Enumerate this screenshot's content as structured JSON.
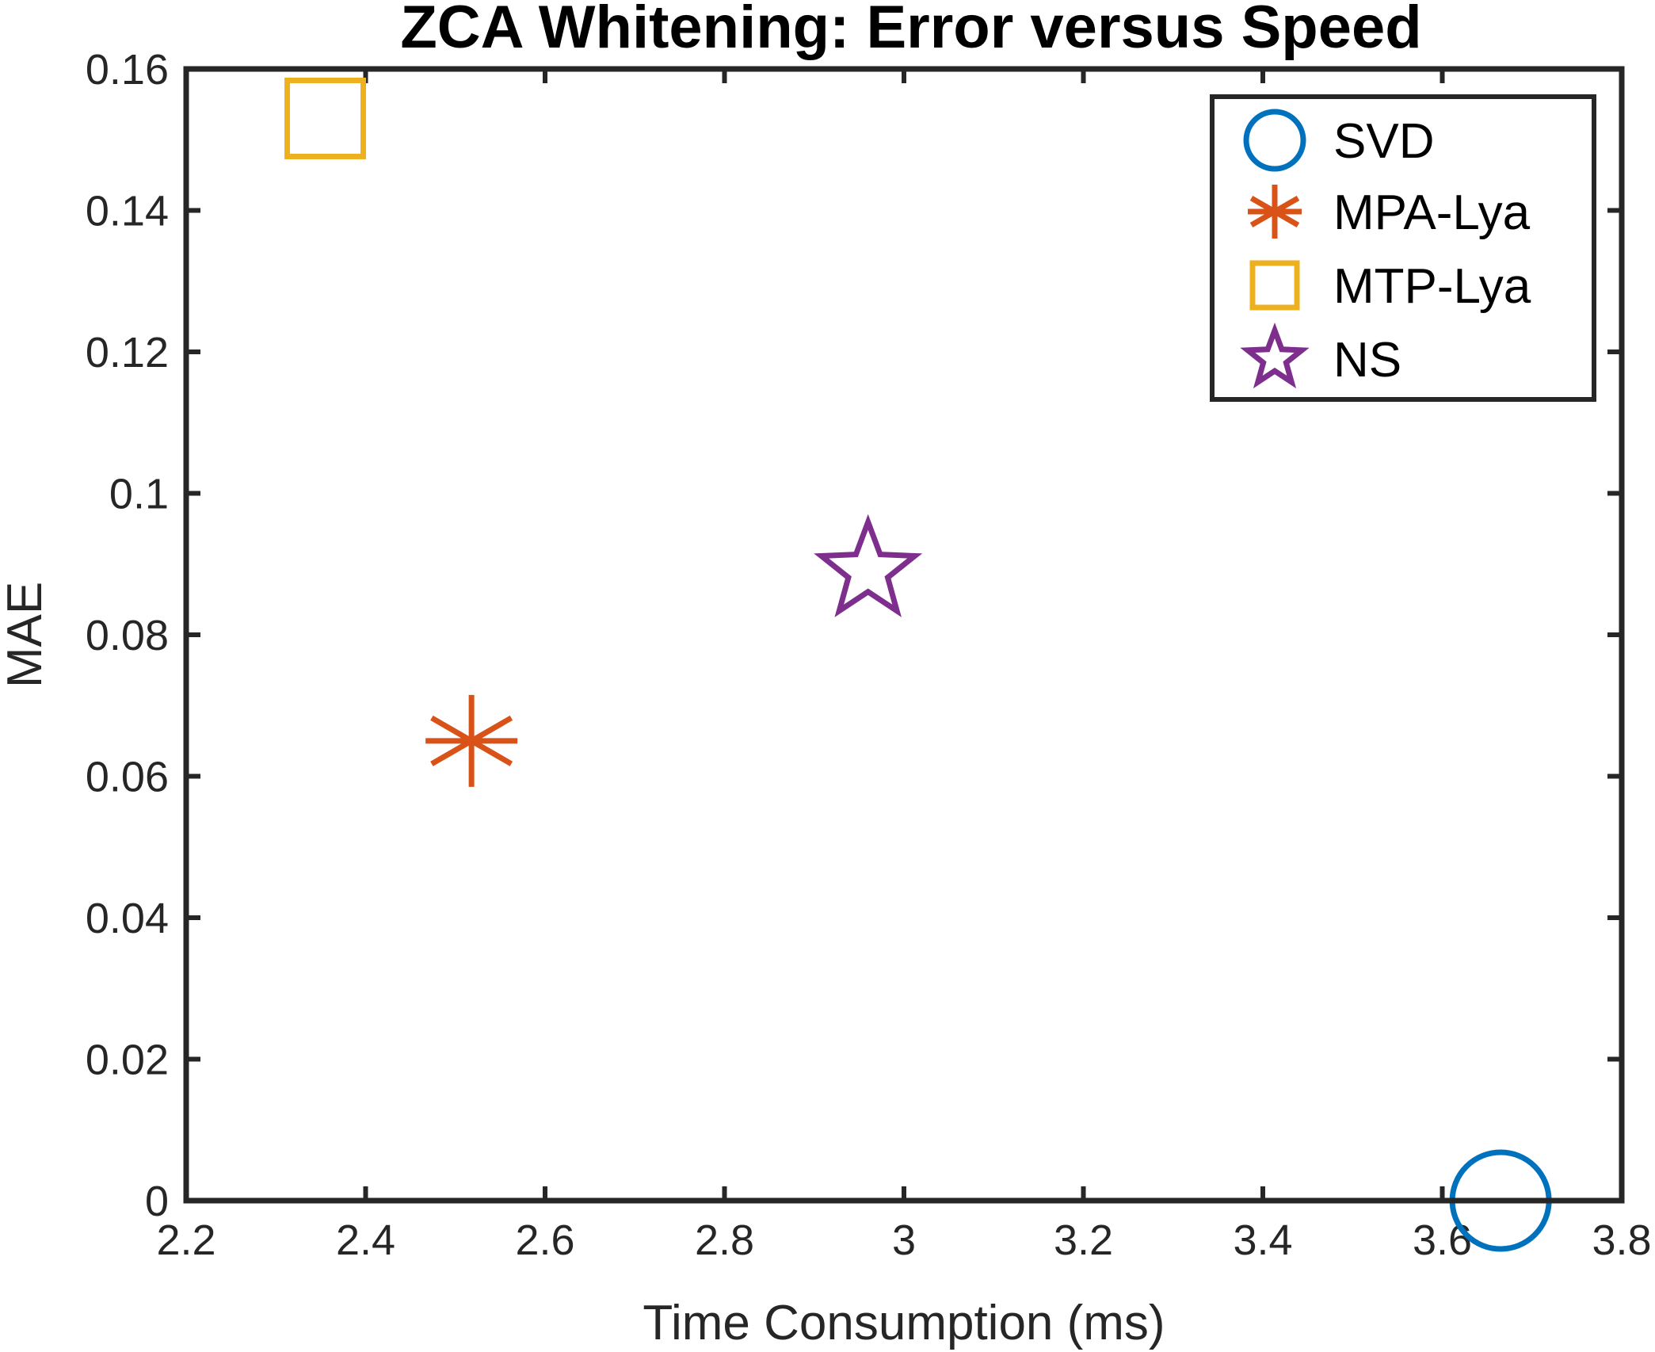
{
  "chart_data": {
    "type": "scatter",
    "title": "ZCA Whitening: Error versus Speed",
    "xlabel": "Time Consumption (ms)",
    "ylabel": "MAE",
    "xlim": [
      2.2,
      3.8
    ],
    "ylim": [
      0,
      0.16
    ],
    "xticks": [
      2.2,
      2.4,
      2.6,
      2.8,
      3.0,
      3.2,
      3.4,
      3.6,
      3.8
    ],
    "xtick_labels": [
      "2.2",
      "2.4",
      "2.6",
      "2.8",
      "3",
      "3.2",
      "3.4",
      "3.6",
      "3.8"
    ],
    "yticks": [
      0,
      0.02,
      0.04,
      0.06,
      0.08,
      0.1,
      0.12,
      0.14,
      0.16
    ],
    "ytick_labels": [
      "0",
      "0.02",
      "0.04",
      "0.06",
      "0.08",
      "0.1",
      "0.12",
      "0.14",
      "0.16"
    ],
    "grid": false,
    "legend_position": "top-right",
    "series": [
      {
        "name": "SVD",
        "marker": "circle",
        "color": "#0072BD",
        "x": 3.665,
        "y": 0.0
      },
      {
        "name": "MPA-Lya",
        "marker": "asterisk",
        "color": "#D95319",
        "x": 2.518,
        "y": 0.065
      },
      {
        "name": "MTP-Lya",
        "marker": "square",
        "color": "#EDB120",
        "x": 2.355,
        "y": 0.153
      },
      {
        "name": "NS",
        "marker": "pentagram",
        "color": "#7E2F8E",
        "x": 2.96,
        "y": 0.089
      }
    ]
  }
}
